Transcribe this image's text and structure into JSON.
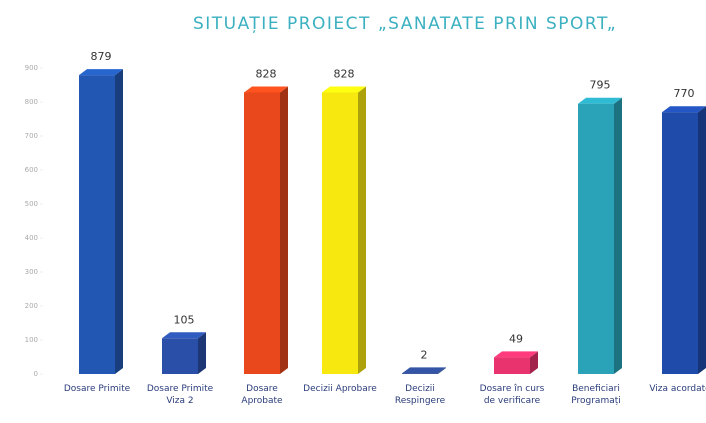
{
  "chart_data": {
    "type": "bar",
    "title": "SITUAȚIE PROIECT „SANATATE PRIN SPORT„",
    "categories": [
      "Dosare Primite",
      "Dosare Primite Viza 2",
      "Dosare Aprobate",
      "Decizii Aprobare",
      "Decizii Respingere",
      "Dosare în curs de verificare",
      "Beneficiari Programați",
      "Viza acordate"
    ],
    "values": [
      879,
      105,
      828,
      828,
      2,
      49,
      795,
      770
    ],
    "colors": [
      "#2258b4",
      "#2a4fa8",
      "#e8481c",
      "#f7e810",
      "#2d4a90",
      "#e8336e",
      "#2aa3b8",
      "#1f4bab"
    ],
    "ylim": [
      0,
      900
    ],
    "yticks": [
      0,
      100,
      200,
      300,
      400,
      500,
      600,
      700,
      800,
      900
    ],
    "grid": false
  }
}
